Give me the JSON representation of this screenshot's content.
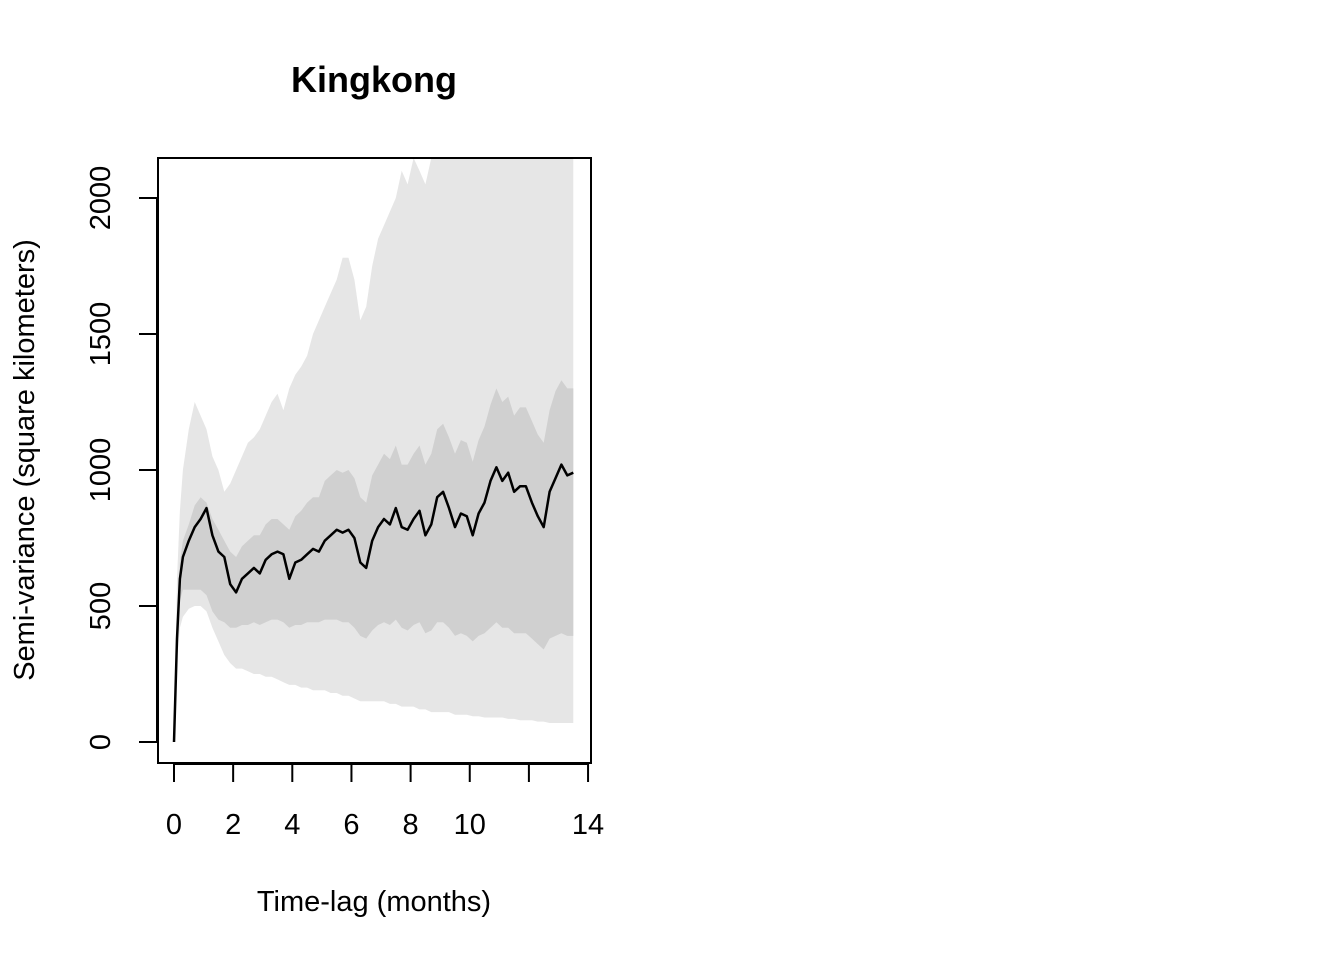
{
  "chart_data": {
    "type": "line",
    "title": "Kingkong",
    "xlabel": "Time-lag (months)",
    "ylabel": "Semi-variance (square kilometers)",
    "xlim": [
      -0.5,
      14
    ],
    "ylim": [
      -80,
      2150
    ],
    "x_ticks": [
      0,
      2,
      4,
      6,
      8,
      10,
      12,
      14
    ],
    "x_tick_labels": [
      "0",
      "2",
      "4",
      "6",
      "8",
      "10",
      "",
      "14"
    ],
    "y_ticks": [
      0,
      500,
      1000,
      1500,
      2000
    ],
    "y_tick_labels": [
      "0",
      "500",
      "1000",
      "1500",
      "2000"
    ],
    "grid": false,
    "legend": "none",
    "colors": {
      "outer_band": "#e6e6e6",
      "inner_band": "#d0d0d0",
      "line": "#000000"
    },
    "x": [
      0,
      0.1,
      0.2,
      0.3,
      0.5,
      0.7,
      0.9,
      1.1,
      1.3,
      1.5,
      1.7,
      1.9,
      2.1,
      2.3,
      2.5,
      2.7,
      2.9,
      3.1,
      3.3,
      3.5,
      3.7,
      3.9,
      4.1,
      4.3,
      4.5,
      4.7,
      4.9,
      5.1,
      5.3,
      5.5,
      5.7,
      5.9,
      6.1,
      6.3,
      6.5,
      6.7,
      6.9,
      7.1,
      7.3,
      7.5,
      7.7,
      7.9,
      8.1,
      8.3,
      8.5,
      8.7,
      8.9,
      9.1,
      9.3,
      9.5,
      9.7,
      9.9,
      10.1,
      10.3,
      10.5,
      10.7,
      10.9,
      11.1,
      11.3,
      11.5,
      11.7,
      11.9,
      12.1,
      12.3,
      12.5,
      12.7,
      12.9,
      13.1,
      13.3,
      13.5
    ],
    "series": [
      {
        "values": [
          0,
          380,
          600,
          680,
          740,
          790,
          820,
          860,
          760,
          700,
          680,
          580,
          550,
          600,
          620,
          640,
          620,
          670,
          690,
          700,
          690,
          600,
          660,
          670,
          690,
          710,
          700,
          740,
          760,
          780,
          770,
          780,
          750,
          660,
          640,
          740,
          790,
          820,
          800,
          860,
          790,
          780,
          820,
          850,
          760,
          800,
          900,
          920,
          860,
          790,
          840,
          830,
          760,
          840,
          880,
          960,
          1010,
          960,
          990,
          920,
          940,
          940,
          880,
          830,
          790,
          920,
          970,
          1020,
          980,
          990
        ]
      }
    ],
    "bands": {
      "outer_upper": [
        0,
        600,
        850,
        1000,
        1150,
        1250,
        1200,
        1150,
        1050,
        1000,
        920,
        950,
        1000,
        1050,
        1100,
        1120,
        1150,
        1200,
        1250,
        1280,
        1220,
        1300,
        1350,
        1380,
        1420,
        1500,
        1550,
        1600,
        1650,
        1700,
        1780,
        1780,
        1700,
        1550,
        1600,
        1750,
        1850,
        1900,
        1950,
        2000,
        2100,
        2050,
        2150,
        2100,
        2050,
        2150,
        2150,
        2150,
        2150,
        2150,
        2150,
        2150,
        2150,
        2150,
        2150,
        2150,
        2150,
        2150,
        2150,
        2150,
        2150,
        2150,
        2150,
        2150,
        2150,
        2150,
        2150,
        2150,
        2150,
        2150
      ],
      "inner_upper": [
        0,
        420,
        660,
        740,
        800,
        870,
        900,
        880,
        820,
        780,
        740,
        700,
        680,
        720,
        740,
        760,
        760,
        800,
        820,
        820,
        800,
        780,
        830,
        850,
        880,
        900,
        900,
        960,
        980,
        1000,
        990,
        1000,
        970,
        900,
        880,
        980,
        1020,
        1060,
        1040,
        1090,
        1020,
        1020,
        1060,
        1090,
        1020,
        1060,
        1150,
        1170,
        1120,
        1060,
        1110,
        1100,
        1030,
        1110,
        1160,
        1240,
        1300,
        1250,
        1270,
        1200,
        1230,
        1230,
        1180,
        1130,
        1100,
        1220,
        1290,
        1330,
        1300,
        1300
      ],
      "inner_lower": [
        0,
        330,
        520,
        560,
        560,
        560,
        560,
        540,
        480,
        450,
        440,
        420,
        420,
        430,
        430,
        440,
        430,
        440,
        450,
        450,
        440,
        420,
        430,
        430,
        440,
        440,
        440,
        450,
        450,
        450,
        440,
        440,
        420,
        390,
        380,
        410,
        430,
        440,
        430,
        450,
        420,
        410,
        430,
        440,
        400,
        410,
        440,
        440,
        420,
        390,
        400,
        390,
        370,
        390,
        400,
        420,
        440,
        420,
        420,
        400,
        400,
        400,
        380,
        360,
        340,
        380,
        390,
        400,
        390,
        390
      ],
      "outer_lower": [
        0,
        300,
        420,
        460,
        490,
        500,
        500,
        480,
        420,
        370,
        320,
        290,
        270,
        270,
        260,
        250,
        250,
        240,
        240,
        230,
        220,
        210,
        210,
        200,
        200,
        190,
        190,
        190,
        180,
        180,
        170,
        170,
        160,
        150,
        150,
        150,
        150,
        150,
        140,
        140,
        130,
        130,
        130,
        120,
        120,
        110,
        110,
        110,
        110,
        100,
        100,
        100,
        95,
        95,
        90,
        90,
        90,
        90,
        85,
        85,
        80,
        80,
        80,
        75,
        75,
        70,
        70,
        70,
        70,
        70
      ]
    }
  }
}
